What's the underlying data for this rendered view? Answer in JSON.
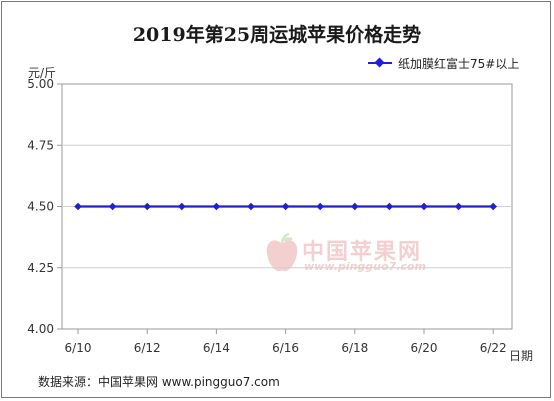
{
  "chart_data": {
    "type": "line",
    "title": "2019年第25周运城苹果价格走势",
    "ylabel": "元/斤",
    "xlabel": "日期",
    "x": [
      "6/10",
      "6/11",
      "6/12",
      "6/13",
      "6/14",
      "6/15",
      "6/16",
      "6/17",
      "6/18",
      "6/19",
      "6/20",
      "6/21",
      "6/22"
    ],
    "x_tick_labels": [
      "6/10",
      "6/12",
      "6/14",
      "6/16",
      "6/18",
      "6/20",
      "6/22"
    ],
    "y_tick_labels": [
      "5.00",
      "4.75",
      "4.50",
      "4.25",
      "4.00"
    ],
    "ylim": [
      4.0,
      5.0
    ],
    "yticks": [
      5.0,
      4.75,
      4.5,
      4.25,
      4.0
    ],
    "grid": true,
    "legend_position": "top-right",
    "series": [
      {
        "name": "纸加膜红富士75#以上",
        "color": "#1f1fd6",
        "values": [
          4.5,
          4.5,
          4.5,
          4.5,
          4.5,
          4.5,
          4.5,
          4.5,
          4.5,
          4.5,
          4.5,
          4.5,
          4.5
        ]
      }
    ]
  },
  "watermark": {
    "text": "中国苹果网",
    "url": "www.pingguo7.com"
  },
  "footer": "数据来源：中国苹果网 www.pingguo7.com"
}
